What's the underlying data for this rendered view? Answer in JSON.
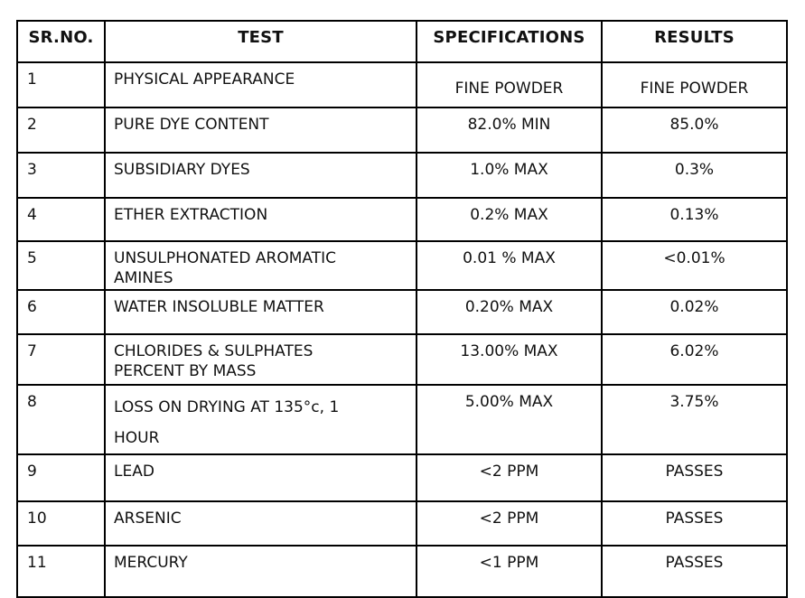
{
  "table": {
    "columns": {
      "srno": "SR.NO.",
      "test": "TEST",
      "spec": "SPECIFICATIONS",
      "result": "RESULTS"
    },
    "rows": [
      {
        "srno": "1",
        "test": "PHYSICAL APPEARANCE",
        "spec": "FINE POWDER",
        "result": "FINE POWDER"
      },
      {
        "srno": "2",
        "test": "PURE DYE CONTENT",
        "spec": "82.0% MIN",
        "result": "85.0%"
      },
      {
        "srno": "3",
        "test": "SUBSIDIARY DYES",
        "spec": "1.0% MAX",
        "result": "0.3%"
      },
      {
        "srno": "4",
        "test": "ETHER EXTRACTION",
        "spec": "0.2% MAX",
        "result": "0.13%"
      },
      {
        "srno": "5",
        "test": "UNSULPHONATED AROMATIC\nAMINES",
        "spec": "0.01 % MAX",
        "result": "<0.01%"
      },
      {
        "srno": "6",
        "test": "WATER INSOLUBLE MATTER",
        "spec": "0.20% MAX",
        "result": "0.02%"
      },
      {
        "srno": "7",
        "test": "CHLORIDES & SULPHATES\nPERCENT BY MASS",
        "spec": "13.00%  MAX",
        "result": "6.02%"
      },
      {
        "srno": "8",
        "test": "LOSS ON DRYING AT 135°c, 1\nHOUR",
        "spec": "5.00% MAX",
        "result": "3.75%"
      },
      {
        "srno": "9",
        "test": "LEAD",
        "spec": "<2 PPM",
        "result": "PASSES"
      },
      {
        "srno": "10",
        "test": "ARSENIC",
        "spec": "<2 PPM",
        "result": "PASSES"
      },
      {
        "srno": "11",
        "test": "MERCURY",
        "spec": "<1 PPM",
        "result": "PASSES"
      }
    ]
  }
}
